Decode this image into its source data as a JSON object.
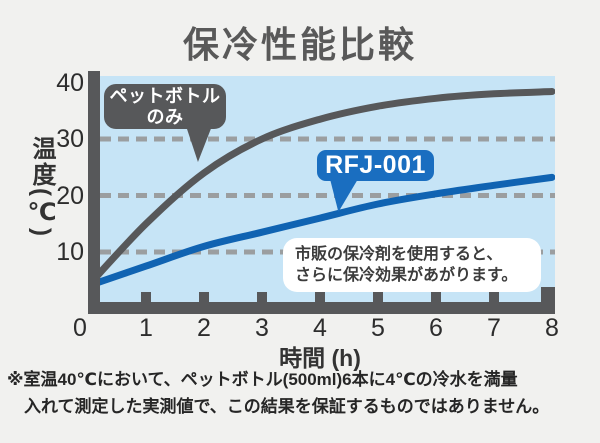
{
  "page": {
    "title": "保冷性能比較"
  },
  "chart_data": {
    "type": "line",
    "title": "保冷性能比較",
    "xlabel": "時間 (h)",
    "ylabel": "温度(℃)",
    "xlim": [
      0,
      8
    ],
    "ylim": [
      0,
      40
    ],
    "x_ticks": [
      0,
      1,
      2,
      3,
      4,
      5,
      6,
      7,
      8
    ],
    "y_ticks": [
      10,
      20,
      30,
      40
    ],
    "gridlines_y": [
      10,
      20,
      30
    ],
    "grid_style": "dashed",
    "legend_position": "callouts-on-plot",
    "x": [
      0,
      1,
      2,
      3,
      4,
      5,
      6,
      7,
      8
    ],
    "series": [
      {
        "name": "ペットボトルのみ",
        "color": "#57585a",
        "values": [
          4,
          15,
          24,
          30,
          33.5,
          35.8,
          37.2,
          38,
          38.4
        ]
      },
      {
        "name": "RFJ-001",
        "color": "#1063b2",
        "values": [
          4,
          7.5,
          11,
          13.5,
          16,
          18.5,
          20.3,
          21.8,
          23.2
        ]
      }
    ]
  },
  "callouts": {
    "petbottle": {
      "line1": "ペットボトル",
      "line2": "のみ"
    },
    "rfj": {
      "label": "RFJ-001"
    }
  },
  "annotation": {
    "line1": "市販の保冷剤を使用すると、",
    "line2": "さらに保冷効果があがります。"
  },
  "footnote": {
    "line1": "※室温40℃において、ペットボトル(500ml)6本に4℃の冷水を満量",
    "line2": "入れて測定した実測値で、この結果を保証するものではありません。"
  },
  "colors": {
    "page_bg": "#f1f1ef",
    "plot_bg": "#c6e4f6",
    "axis": "#57585a",
    "grid": "#9b9ea0",
    "series_petbottle": "#57585a",
    "series_rfj": "#1063b2",
    "badge_petbottle_bg": "#57585a",
    "badge_rfj_bg": "#1a6ec0",
    "annotation_bg": "#ffffff",
    "title_text": "#595959",
    "footnote_text": "#262626"
  }
}
